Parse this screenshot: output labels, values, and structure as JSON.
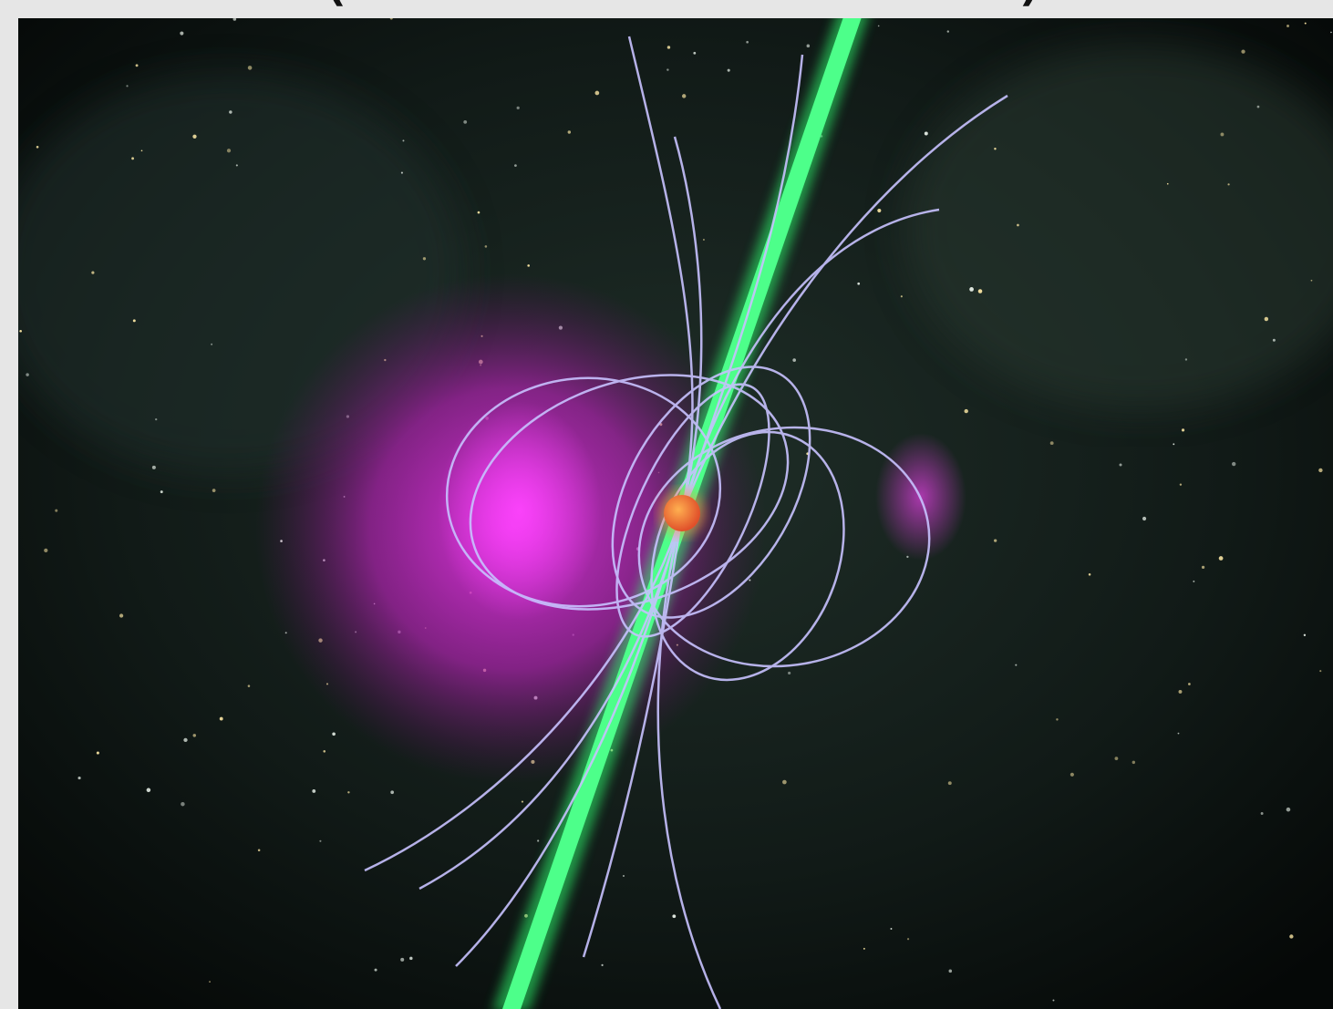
{
  "header": {
    "left": "(",
    "right": ")"
  }
}
